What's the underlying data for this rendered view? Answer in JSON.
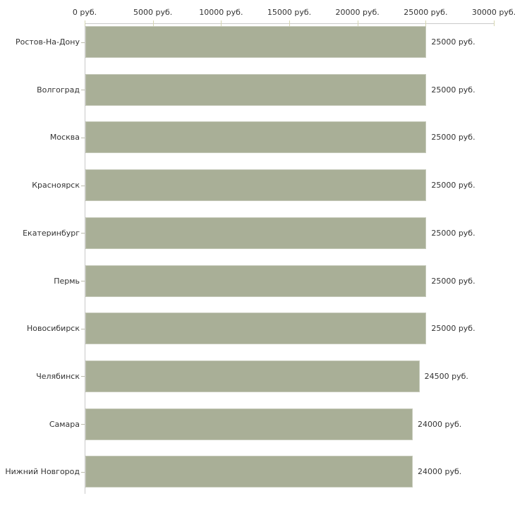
{
  "chart_data": {
    "type": "bar",
    "orientation": "horizontal",
    "title": "",
    "xlabel": "",
    "ylabel": "",
    "unit": "руб.",
    "categories": [
      "Ростов-На-Дону",
      "Волгоград",
      "Москва",
      "Красноярск",
      "Екатеринбург",
      "Пермь",
      "Новосибирск",
      "Челябинск",
      "Самара",
      "Нижний Новгород"
    ],
    "values": [
      25000,
      25000,
      25000,
      25000,
      25000,
      25000,
      25000,
      24500,
      24000,
      24000
    ],
    "value_labels": [
      "25000 руб.",
      "25000 руб.",
      "25000 руб.",
      "25000 руб.",
      "25000 руб.",
      "25000 руб.",
      "25000 руб.",
      "24500 руб.",
      "24000 руб.",
      "24000 руб."
    ],
    "xlim": [
      0,
      30000
    ],
    "x_ticks": [
      0,
      5000,
      10000,
      15000,
      20000,
      25000,
      30000
    ],
    "x_tick_labels": [
      "0 руб.",
      "5000 руб.",
      "10000 руб.",
      "15000 руб.",
      "20000 руб.",
      "25000 руб.",
      "30000 руб."
    ],
    "grid": false,
    "legend": false,
    "colors": {
      "bar_fill": "#a9af97",
      "axis_line": "#c9c9c9",
      "axis_tick": "#d6d6b2",
      "category_tick": "#bbbbad",
      "text": "#333333",
      "background": "#ffffff"
    }
  }
}
